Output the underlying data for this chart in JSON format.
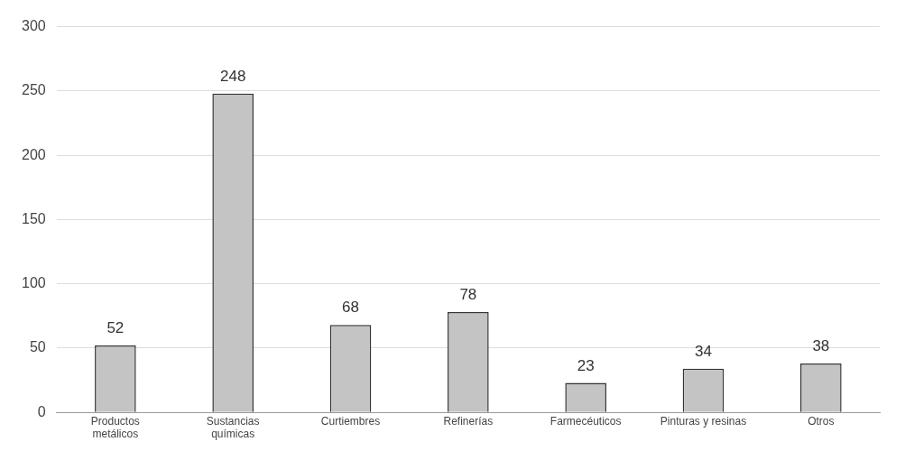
{
  "chart_data": {
    "type": "bar",
    "categories": [
      "Productos metálicos",
      "Sustancias químicas",
      "Curtiembres",
      "Refinerías",
      "Farmecéuticos",
      "Pinturas y resinas",
      "Otros"
    ],
    "values": [
      52,
      248,
      68,
      78,
      23,
      34,
      38
    ],
    "color": "#c4c4c4",
    "ylim": [
      0,
      300
    ],
    "yticks": [
      0,
      50,
      100,
      150,
      200,
      250,
      300
    ],
    "grid": "y",
    "legend": false,
    "data_labels": true
  }
}
